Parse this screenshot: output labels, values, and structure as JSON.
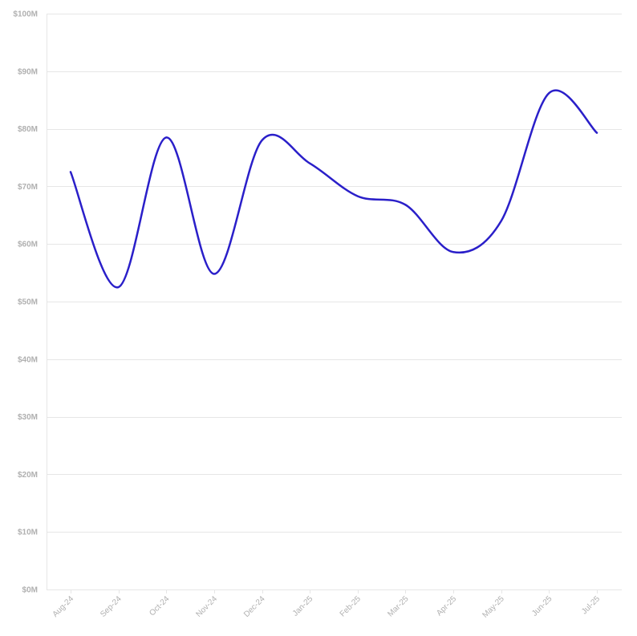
{
  "chart_data": {
    "type": "line",
    "title": "",
    "xlabel": "",
    "ylabel": "",
    "categories": [
      "Aug-24",
      "Sep-24",
      "Oct-24",
      "Nov-24",
      "Dec-24",
      "Jan-25",
      "Feb-25",
      "Mar-25",
      "Apr-25",
      "May-25",
      "Jun-25",
      "Jul-25"
    ],
    "series": [
      {
        "values": [
          72.5,
          52.5,
          78.5,
          54.8,
          78.0,
          74.0,
          68.3,
          66.8,
          58.6,
          64.0,
          86.2,
          79.3
        ],
        "color": "#2a1fc9"
      }
    ],
    "ylim": [
      0,
      100
    ],
    "y_ticks": [
      0,
      10,
      20,
      30,
      40,
      50,
      60,
      70,
      80,
      90,
      100
    ],
    "y_tick_labels": [
      "$0M",
      "$10M",
      "$20M",
      "$30M",
      "$40M",
      "$50M",
      "$60M",
      "$70M",
      "$80M",
      "$90M",
      "$100M"
    ],
    "grid": true,
    "legend": "none",
    "curve": "smooth",
    "colors": {
      "grid": "#e6e6e6",
      "tick_label": "#b0b0b0"
    }
  }
}
